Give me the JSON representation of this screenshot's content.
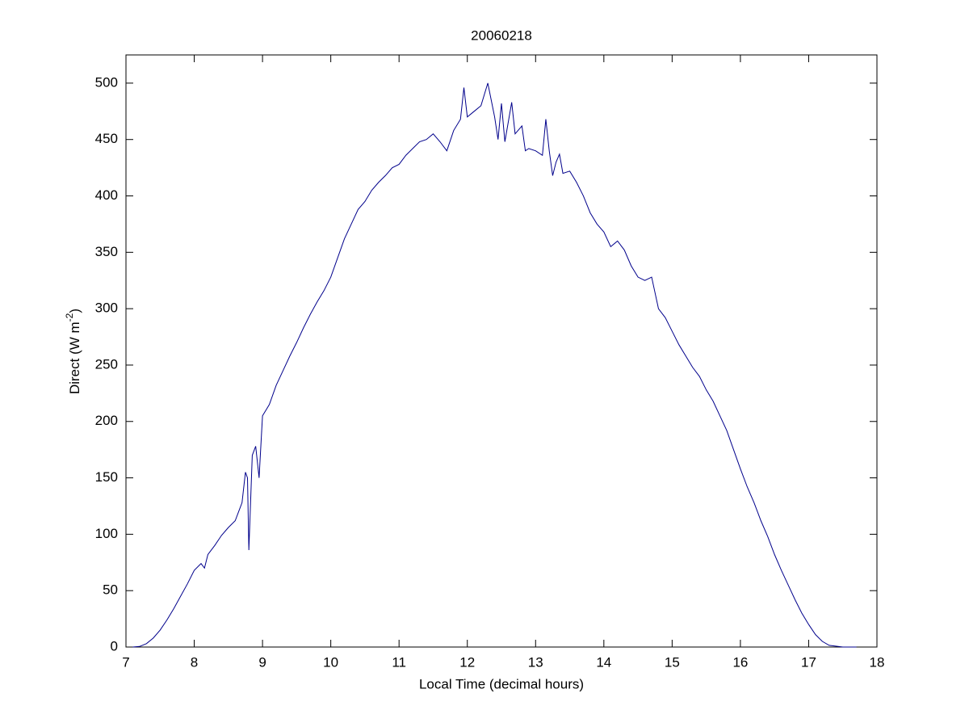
{
  "chart_data": {
    "type": "line",
    "title": "20060218",
    "xlabel": "Local Time (decimal hours)",
    "ylabel": {
      "text": "Direct (W m",
      "superscript": "-2",
      "suffix": ")"
    },
    "color": "#00008b",
    "x": [
      7.1,
      7.2,
      7.3,
      7.4,
      7.5,
      7.6,
      7.7,
      7.8,
      7.9,
      8.0,
      8.1,
      8.15,
      8.2,
      8.3,
      8.4,
      8.5,
      8.6,
      8.7,
      8.75,
      8.78,
      8.8,
      8.85,
      8.9,
      8.95,
      9.0,
      9.1,
      9.2,
      9.3,
      9.4,
      9.5,
      9.6,
      9.7,
      9.8,
      9.9,
      10.0,
      10.1,
      10.2,
      10.3,
      10.4,
      10.5,
      10.6,
      10.7,
      10.8,
      10.9,
      11.0,
      11.1,
      11.2,
      11.3,
      11.4,
      11.5,
      11.6,
      11.7,
      11.8,
      11.9,
      11.95,
      12.0,
      12.1,
      12.2,
      12.3,
      12.4,
      12.45,
      12.5,
      12.55,
      12.65,
      12.7,
      12.8,
      12.85,
      12.9,
      13.0,
      13.1,
      13.15,
      13.2,
      13.25,
      13.3,
      13.35,
      13.4,
      13.5,
      13.6,
      13.7,
      13.8,
      13.9,
      14.0,
      14.1,
      14.2,
      14.3,
      14.4,
      14.5,
      14.6,
      14.7,
      14.8,
      14.9,
      15.0,
      15.1,
      15.2,
      15.3,
      15.4,
      15.5,
      15.6,
      15.7,
      15.8,
      15.9,
      16.0,
      16.1,
      16.2,
      16.3,
      16.4,
      16.5,
      16.6,
      16.7,
      16.8,
      16.9,
      17.0,
      17.1,
      17.2,
      17.3,
      17.5,
      17.7
    ],
    "values": [
      0,
      0.5,
      3,
      8,
      15,
      24,
      34,
      45,
      56,
      68,
      74,
      70,
      82,
      90,
      99,
      106,
      112,
      128,
      155,
      150,
      86,
      170,
      178,
      150,
      205,
      215,
      232,
      245,
      258,
      270,
      283,
      295,
      306,
      316,
      328,
      345,
      362,
      375,
      388,
      395,
      405,
      412,
      418,
      425,
      428,
      436,
      442,
      448,
      450,
      455,
      448,
      440,
      458,
      468,
      496,
      470,
      475,
      480,
      500,
      470,
      450,
      482,
      448,
      483,
      455,
      462,
      440,
      442,
      440,
      436,
      468,
      440,
      418,
      430,
      437,
      420,
      422,
      412,
      400,
      385,
      375,
      368,
      355,
      360,
      352,
      338,
      328,
      325,
      328,
      300,
      292,
      280,
      268,
      258,
      248,
      240,
      228,
      218,
      205,
      192,
      175,
      158,
      142,
      128,
      112,
      98,
      82,
      68,
      55,
      42,
      30,
      20,
      11,
      5,
      1.5,
      0,
      0
    ],
    "xlim": [
      7,
      18
    ],
    "xticks": [
      7,
      8,
      9,
      10,
      11,
      12,
      13,
      14,
      15,
      16,
      17,
      18
    ],
    "ylim": [
      0,
      525
    ],
    "yticks": [
      0,
      50,
      100,
      150,
      200,
      250,
      300,
      350,
      400,
      450,
      500
    ]
  }
}
